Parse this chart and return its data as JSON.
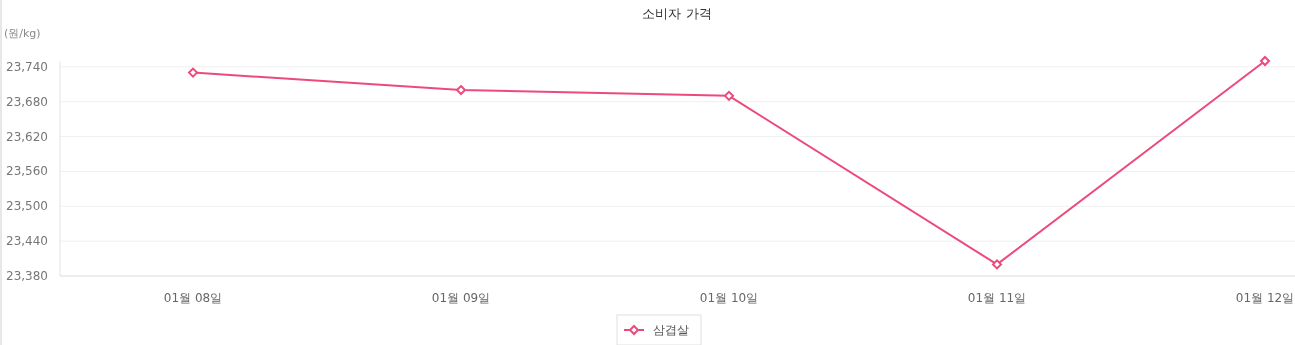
{
  "chart_data": {
    "type": "line",
    "title": "소비자 가격",
    "ylabel": "(원/kg)",
    "categories": [
      "01월 08일",
      "01월 09일",
      "01월 10일",
      "01월 11일",
      "01월 12일"
    ],
    "series": [
      {
        "name": "삼겹살",
        "color": "#ec4a7b",
        "values": [
          23730,
          23700,
          23690,
          23400,
          23750
        ]
      }
    ],
    "ylim": [
      23380,
      23750
    ],
    "yticks": [
      {
        "value": 23380,
        "label": "23,380"
      },
      {
        "value": 23440,
        "label": "23,440"
      },
      {
        "value": 23500,
        "label": "23,500"
      },
      {
        "value": 23560,
        "label": "23,560"
      },
      {
        "value": 23620,
        "label": "23,620"
      },
      {
        "value": 23680,
        "label": "23,680"
      },
      {
        "value": 23740,
        "label": "23,740"
      }
    ],
    "grid": "y",
    "legend": "bottom",
    "marker": "diamond",
    "line_style": "solid"
  }
}
